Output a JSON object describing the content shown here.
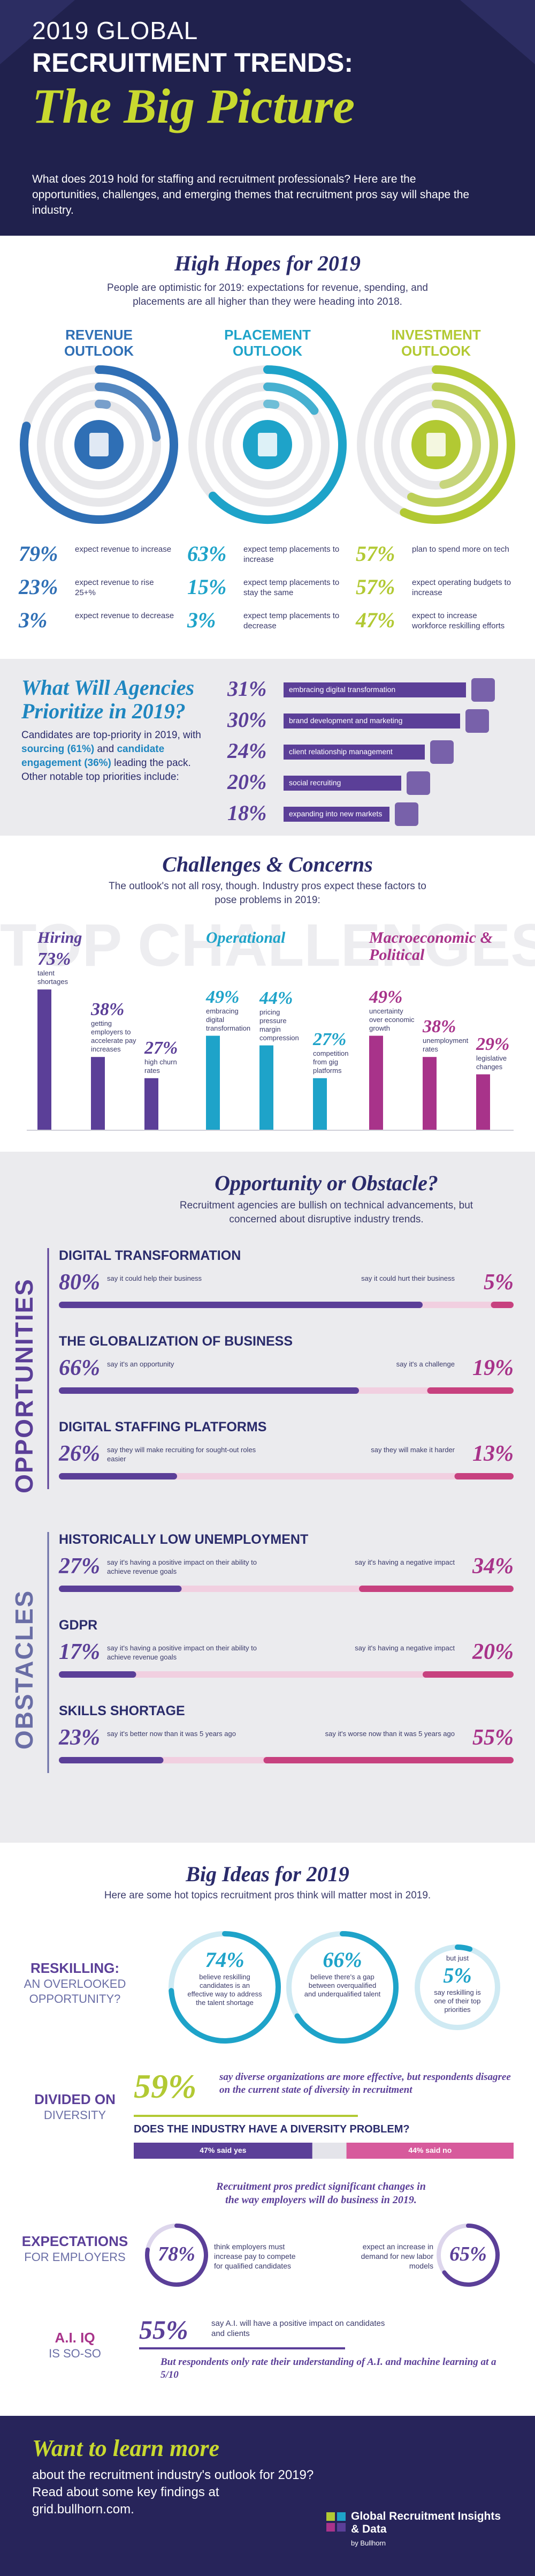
{
  "header": {
    "line1": "2019 GLOBAL",
    "line2": "RECRUITMENT TRENDS:",
    "line3": "The Big Picture",
    "intro": "What does 2019 hold for staffing and recruitment professionals? Here are the opportunities, challenges, and emerging themes that recruitment pros say will shape the industry."
  },
  "high_hopes": {
    "title": "High Hopes for 2019",
    "subtitle": "People are optimistic for 2019: expectations for revenue, spending, and placements are all higher than they were heading into 2018.",
    "columns": [
      {
        "title": "REVENUE OUTLOOK",
        "color": "#2f6fb5",
        "stats": [
          {
            "value": 79,
            "label": "79%",
            "text": "expect revenue to increase"
          },
          {
            "value": 23,
            "label": "23%",
            "text": "expect revenue to rise 25+%"
          },
          {
            "value": 3,
            "label": "3%",
            "text": "expect revenue to decrease"
          }
        ]
      },
      {
        "title": "PLACEMENT OUTLOOK",
        "color": "#1ea3c9",
        "stats": [
          {
            "value": 63,
            "label": "63%",
            "text": "expect temp placements to increase"
          },
          {
            "value": 15,
            "label": "15%",
            "text": "expect temp placements to stay the same"
          },
          {
            "value": 3,
            "label": "3%",
            "text": "expect temp placements to decrease"
          }
        ]
      },
      {
        "title": "INVESTMENT OUTLOOK",
        "color": "#b2c933",
        "stats": [
          {
            "value": 57,
            "label": "57%",
            "text": "plan to spend more on tech"
          },
          {
            "value": 57,
            "label": "57%",
            "text": "expect operating budgets to increase"
          },
          {
            "value": 47,
            "label": "47%",
            "text": "expect to increase workforce reskilling efforts"
          }
        ]
      }
    ]
  },
  "priorities": {
    "title": "What Will Agencies Prioritize in 2019?",
    "parts": [
      "Candidates are top-priority in 2019, with ",
      "sourcing (61%)",
      " and ",
      "candidate engagement (36%)",
      " leading the pack. Other notable top priorities include:"
    ],
    "color": "#5b3f98",
    "items": [
      {
        "value": 31,
        "label": "31%",
        "text": "embracing digital transformation"
      },
      {
        "value": 30,
        "label": "30%",
        "text": "brand development and marketing"
      },
      {
        "value": 24,
        "label": "24%",
        "text": "client relationship management"
      },
      {
        "value": 20,
        "label": "20%",
        "text": "social recruiting"
      },
      {
        "value": 18,
        "label": "18%",
        "text": "expanding into new markets"
      }
    ]
  },
  "challenges": {
    "title": "Challenges & Concerns",
    "subtitle": "The outlook's not all rosy, though. Industry pros expect these factors to pose problems in 2019:",
    "backdrop": "TOP CHALLENGES",
    "groups": [
      {
        "name": "Hiring",
        "color": "#5b3f98",
        "items": [
          {
            "value": 73,
            "label": "73%",
            "text": "talent shortages"
          },
          {
            "value": 38,
            "label": "38%",
            "text": "getting employers to accelerate pay increases"
          },
          {
            "value": 27,
            "label": "27%",
            "text": "high churn rates"
          }
        ]
      },
      {
        "name": "Operational",
        "color": "#1ea3c9",
        "items": [
          {
            "value": 49,
            "label": "49%",
            "text": "embracing digital transformation"
          },
          {
            "value": 44,
            "label": "44%",
            "text": "pricing pressure margin compression"
          },
          {
            "value": 27,
            "label": "27%",
            "text": "competition from gig platforms"
          }
        ]
      },
      {
        "name": "Macroeconomic & Political",
        "color": "#a8338a",
        "items": [
          {
            "value": 49,
            "label": "49%",
            "text": "uncertainty over economic growth"
          },
          {
            "value": 38,
            "label": "38%",
            "text": "unemployment rates"
          },
          {
            "value": 29,
            "label": "29%",
            "text": "legislative changes"
          }
        ]
      }
    ]
  },
  "opportunity": {
    "title": "Opportunity or Obstacle?",
    "subtitle": "Recruitment agencies are bullish on technical advancements, but concerned about disruptive industry trends.",
    "groups": [
      {
        "name": "OPPORTUNITIES",
        "color": "#5b3f98",
        "items": [
          {
            "heading": "DIGITAL TRANSFORMATION",
            "left": {
              "value": 80,
              "label": "80%",
              "text": "say it could help their business"
            },
            "right": {
              "value": 5,
              "label": "5%",
              "text": "say it could hurt their business"
            }
          },
          {
            "heading": "THE GLOBALIZATION OF BUSINESS",
            "left": {
              "value": 66,
              "label": "66%",
              "text": "say it's an opportunity"
            },
            "right": {
              "value": 19,
              "label": "19%",
              "text": "say it's a challenge"
            }
          },
          {
            "heading": "DIGITAL STAFFING PLATFORMS",
            "left": {
              "value": 26,
              "label": "26%",
              "text": "say they will make recruiting for sought-out roles easier"
            },
            "right": {
              "value": 13,
              "label": "13%",
              "text": "say they will make it harder"
            }
          }
        ]
      },
      {
        "name": "OBSTACLES",
        "color": "#6a6ea6",
        "items": [
          {
            "heading": "HISTORICALLY LOW UNEMPLOYMENT",
            "left": {
              "value": 27,
              "label": "27%",
              "text": "say it's having a positive impact on their ability to achieve revenue goals"
            },
            "right": {
              "value": 34,
              "label": "34%",
              "text": "say it's having a negative impact"
            }
          },
          {
            "heading": "GDPR",
            "left": {
              "value": 17,
              "label": "17%",
              "text": "say it's having a positive impact on their ability to achieve revenue goals"
            },
            "right": {
              "value": 20,
              "label": "20%",
              "text": "say it's having a negative impact"
            }
          },
          {
            "heading": "SKILLS SHORTAGE",
            "left": {
              "value": 23,
              "label": "23%",
              "text": "say it's better now than it was 5 years ago"
            },
            "right": {
              "value": 55,
              "label": "55%",
              "text": "say it's worse now than it was 5 years ago"
            }
          }
        ]
      }
    ]
  },
  "big_ideas": {
    "title": "Big Ideas for 2019",
    "subtitle": "Here are some hot topics recruitment pros think will matter most in 2019.",
    "reskilling": {
      "label": [
        "RESKILLING:",
        "AN OVERLOOKED OPPORTUNITY?"
      ],
      "stats": [
        {
          "value": 74,
          "label": "74%",
          "text": "believe reskilling candidates is an effective way to address the talent shortage"
        },
        {
          "value": 66,
          "label": "66%",
          "text": "believe there's a gap between overqualified and underqualified talent"
        },
        {
          "lead": "but just",
          "value": 5,
          "label": "5%",
          "text": "say reskilling is one of their top priorities"
        }
      ]
    },
    "diversity": {
      "label": [
        "DIVIDED ON",
        "DIVERSITY"
      ],
      "stat": {
        "value": 59,
        "label": "59%",
        "text": "say diverse organizations are more effective, but respondents disagree on the current state of diversity in recruitment"
      },
      "question": "DOES THE INDUSTRY HAVE A DIVERSITY PROBLEM?",
      "split": [
        {
          "value": 47,
          "label": "47% said yes"
        },
        {
          "value": 44,
          "label": "44% said no"
        }
      ]
    },
    "employers": {
      "label": [
        "EXPECTATIONS",
        "FOR EMPLOYERS"
      ],
      "text": "Recruitment pros predict significant changes in the way employers will do business in 2019.",
      "stats": [
        {
          "value": 78,
          "label": "78%",
          "text": "think employers must increase pay to compete for qualified candidates"
        },
        {
          "value": 65,
          "label": "65%",
          "text": "expect an increase in demand for new labor models"
        }
      ]
    },
    "ai": {
      "label": [
        "A.I. IQ",
        "IS SO-SO"
      ],
      "stat": {
        "value": 55,
        "label": "55%",
        "text": "say A.I. will have a positive impact on candidates and clients"
      },
      "note": "But respondents only rate their understanding of A.I. and machine learning at a 5/10"
    }
  },
  "footer": {
    "title": "Want to learn more",
    "text": "about the recruitment industry's outlook for 2019? Read about some key findings at grid.bullhorn.com.",
    "logo": "Global Recruitment Insights & Data",
    "logo_by": "by Bullhorn"
  }
}
